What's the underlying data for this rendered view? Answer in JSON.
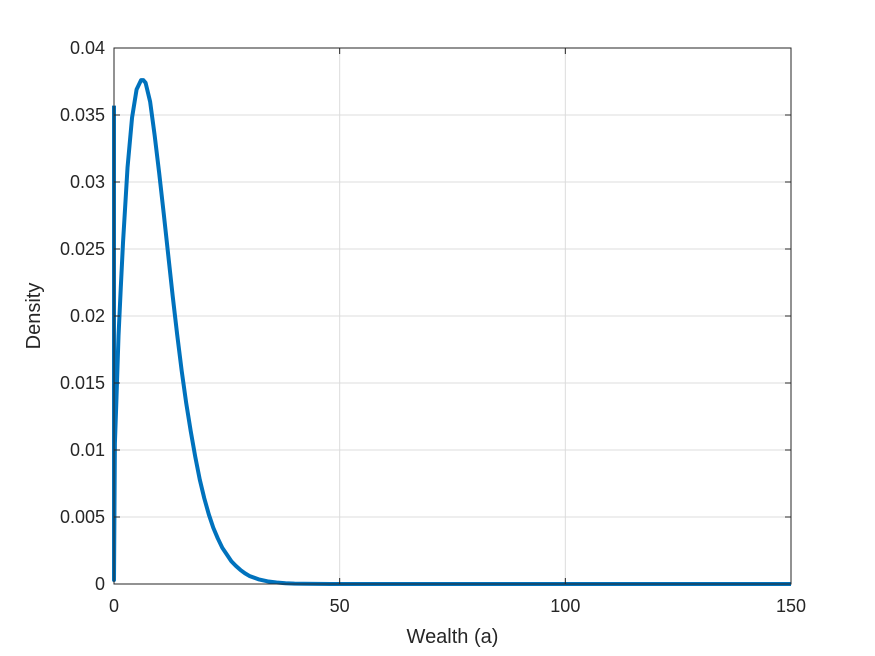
{
  "chart_data": {
    "type": "line",
    "title": "",
    "xlabel": "Wealth (a)",
    "ylabel": "Density",
    "xlim": [
      0,
      150
    ],
    "ylim": [
      0,
      0.04
    ],
    "xticks": [
      0,
      50,
      100,
      150
    ],
    "yticks": [
      0,
      0.005,
      0.01,
      0.015,
      0.02,
      0.025,
      0.03,
      0.035,
      0.04
    ],
    "xtick_labels": [
      "0",
      "50",
      "100",
      "150"
    ],
    "ytick_labels": [
      "0",
      "0.005",
      "0.01",
      "0.015",
      "0.02",
      "0.025",
      "0.03",
      "0.035",
      "0.04"
    ],
    "grid": true,
    "line_color": "#0072BD",
    "series": [
      {
        "x": [
          0,
          0,
          0.2,
          0.5,
          1,
          1.5,
          2,
          3,
          4,
          5,
          6,
          6.5,
          7,
          8,
          9,
          10,
          11,
          12,
          13,
          14,
          15,
          16,
          17,
          18,
          19,
          20,
          21,
          22,
          23,
          24,
          25,
          26,
          27,
          28,
          29,
          30,
          32,
          34,
          36,
          38,
          40,
          42,
          45,
          48,
          50,
          55,
          60,
          70,
          80,
          100,
          120,
          150
        ],
        "y": [
          0.0357,
          0.0003,
          0.0105,
          0.0134,
          0.0185,
          0.0221,
          0.0255,
          0.0311,
          0.0348,
          0.0369,
          0.0376,
          0.0376,
          0.0374,
          0.036,
          0.0335,
          0.0307,
          0.0277,
          0.0246,
          0.0215,
          0.0186,
          0.0159,
          0.0135,
          0.0114,
          0.0095,
          0.0078,
          0.0064,
          0.0052,
          0.0042,
          0.0034,
          0.0027,
          0.0022,
          0.0017,
          0.00135,
          0.00105,
          0.0008,
          0.0006,
          0.00035,
          0.0002,
          0.00011,
          6e-05,
          3e-05,
          1.5e-05,
          6e-06,
          2e-06,
          1e-06,
          3e-07,
          1e-07,
          0,
          0,
          0,
          0,
          0
        ]
      }
    ]
  }
}
